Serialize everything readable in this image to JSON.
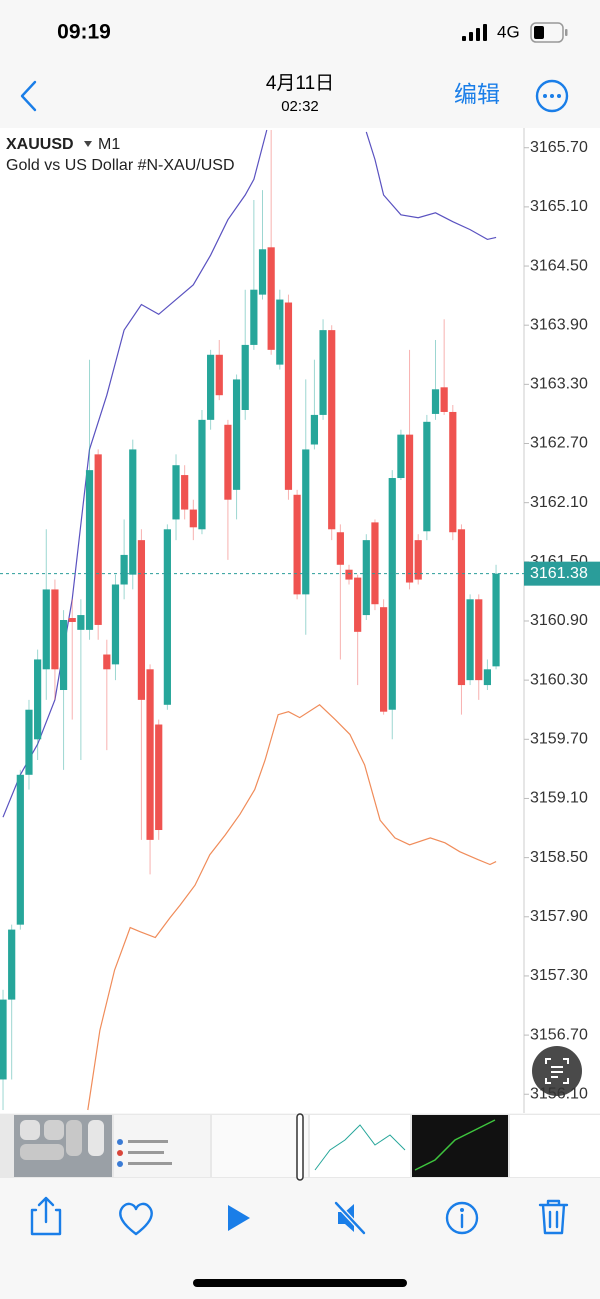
{
  "status_bar": {
    "time": "09:19",
    "network": "4G"
  },
  "nav": {
    "date": "4月11日",
    "time": "02:32",
    "edit": "编辑"
  },
  "chart_data": {
    "type": "candlestick",
    "title": "XAUUSD",
    "timeframe": "M1",
    "subtitle": "Gold vs US Dollar #N-XAU/USD",
    "up_color": "#26a69a",
    "down_color": "#ef5350",
    "xlim": [
      -0.35,
      60
    ],
    "ylim": [
      3155.92,
      3165.9
    ],
    "yticks": [
      {
        "value": 3165.7,
        "label": "3165.70"
      },
      {
        "value": 3165.1,
        "label": "3165.10"
      },
      {
        "value": 3164.5,
        "label": "3164.50"
      },
      {
        "value": 3163.9,
        "label": "3163.90"
      },
      {
        "value": 3163.3,
        "label": "3163.30"
      },
      {
        "value": 3162.7,
        "label": "3162.70"
      },
      {
        "value": 3162.1,
        "label": "3162.10"
      },
      {
        "value": 3161.5,
        "label": "3161.50"
      },
      {
        "value": 3160.9,
        "label": "3160.90"
      },
      {
        "value": 3160.3,
        "label": "3160.30"
      },
      {
        "value": 3159.7,
        "label": "3159.70"
      },
      {
        "value": 3159.1,
        "label": "3159.10"
      },
      {
        "value": 3158.5,
        "label": "3158.50"
      },
      {
        "value": 3157.9,
        "label": "3157.90"
      },
      {
        "value": 3157.3,
        "label": "3157.30"
      },
      {
        "value": 3156.7,
        "label": "3156.70"
      },
      {
        "value": 3156.1,
        "label": "3156.10"
      }
    ],
    "price_line": {
      "value": 3161.38,
      "label": "3161.38",
      "color": "#2a9d9a"
    },
    "open": [
      3156.25,
      3157.06,
      3157.82,
      3159.34,
      3159.7,
      3160.41,
      3161.22,
      3160.2,
      3160.93,
      3160.81,
      3160.81,
      3162.59,
      3160.56,
      3160.46,
      3161.27,
      3161.37,
      3161.72,
      3160.41,
      3159.85,
      3160.05,
      3161.93,
      3162.38,
      3162.03,
      3161.83,
      3162.94,
      3163.6,
      3162.89,
      3162.23,
      3163.04,
      3163.7,
      3164.21,
      3164.69,
      3163.5,
      3164.13,
      3162.18,
      3161.17,
      3162.69,
      3162.99,
      3163.85,
      3161.8,
      3161.42,
      3161.34,
      3160.96,
      3161.9,
      3161.04,
      3160.0,
      3162.35,
      3162.79,
      3161.72,
      3161.81,
      3163.0,
      3163.27,
      3163.02,
      3161.83,
      3160.3,
      3161.12,
      3160.25,
      3160.44
    ],
    "high": [
      3157.16,
      3157.82,
      3159.39,
      3160.1,
      3160.61,
      3161.83,
      3161.32,
      3161.01,
      3161.12,
      3161.12,
      3163.55,
      3162.64,
      3160.71,
      3161.37,
      3161.93,
      3162.74,
      3161.83,
      3160.46,
      3159.9,
      3161.88,
      3162.59,
      3162.48,
      3162.13,
      3163.04,
      3163.65,
      3163.75,
      3162.94,
      3163.4,
      3164.26,
      3165.17,
      3165.27,
      3165.88,
      3164.26,
      3164.21,
      3162.23,
      3163.35,
      3163.55,
      3163.96,
      3163.9,
      3161.88,
      3161.47,
      3161.37,
      3161.78,
      3161.93,
      3161.12,
      3162.43,
      3162.84,
      3163.65,
      3161.78,
      3162.99,
      3163.75,
      3163.96,
      3163.09,
      3161.88,
      3161.17,
      3161.17,
      3160.51,
      3161.47
    ],
    "low": [
      3155.94,
      3156.25,
      3157.77,
      3159.19,
      3159.49,
      3160.1,
      3160.1,
      3159.39,
      3159.9,
      3159.49,
      3160.71,
      3160.71,
      3159.59,
      3160.3,
      3161.12,
      3161.22,
      3158.68,
      3158.33,
      3158.68,
      3160.0,
      3161.72,
      3161.93,
      3161.72,
      3161.78,
      3162.84,
      3163.14,
      3161.52,
      3161.93,
      3162.94,
      3163.65,
      3164.16,
      3163.6,
      3163.45,
      3162.13,
      3161.12,
      3160.76,
      3162.64,
      3162.94,
      3161.72,
      3160.51,
      3161.27,
      3160.25,
      3160.91,
      3161.01,
      3159.95,
      3159.7,
      3162.33,
      3161.22,
      3161.27,
      3161.72,
      3162.94,
      3162.99,
      3161.72,
      3159.95,
      3160.25,
      3160.1,
      3160.2,
      3160.41
    ],
    "close": [
      3157.06,
      3157.77,
      3159.34,
      3160.0,
      3160.51,
      3161.22,
      3160.41,
      3160.91,
      3160.89,
      3160.96,
      3162.43,
      3160.86,
      3160.41,
      3161.27,
      3161.57,
      3162.64,
      3160.1,
      3158.68,
      3158.78,
      3161.83,
      3162.48,
      3162.03,
      3161.85,
      3162.94,
      3163.6,
      3163.19,
      3162.13,
      3163.35,
      3163.7,
      3164.26,
      3164.67,
      3163.65,
      3164.16,
      3162.23,
      3161.17,
      3162.64,
      3162.99,
      3163.85,
      3161.83,
      3161.47,
      3161.32,
      3160.79,
      3161.72,
      3161.07,
      3159.98,
      3162.35,
      3162.79,
      3161.29,
      3161.32,
      3162.92,
      3163.25,
      3163.02,
      3161.8,
      3160.25,
      3161.12,
      3160.3,
      3160.41,
      3161.38
    ],
    "bands": [
      {
        "color": "#5a52c0",
        "x": [
          0,
          2,
          4,
          6,
          8,
          10,
          12,
          14,
          16,
          18,
          20,
          22,
          24,
          26,
          28,
          29,
          30.5,
          36,
          42,
          43,
          44,
          46,
          48,
          50,
          52,
          54,
          56,
          57
        ],
        "values": [
          3158.91,
          3159.34,
          3159.65,
          3160.1,
          3161.12,
          3162.64,
          3163.19,
          3163.85,
          3164.11,
          3164.01,
          3164.16,
          3164.31,
          3164.61,
          3164.97,
          3165.22,
          3165.38,
          3165.88,
          null,
          3165.86,
          3165.58,
          3165.22,
          3165.02,
          3164.99,
          3165.04,
          3164.95,
          3164.87,
          3164.77,
          3164.79
        ]
      },
      {
        "color": "#f08c5a",
        "x": [
          9.8,
          11.2,
          12.9,
          14.7,
          15.8,
          17.6,
          19.3,
          20.5,
          22.2,
          23.9,
          25.7,
          27.4,
          29.1,
          30.3,
          31.8,
          33,
          34.3,
          36.6,
          38.4,
          40.1,
          41.8,
          43.6,
          45.3,
          47,
          49.4,
          51.1,
          52.8,
          54.9,
          56.3,
          57
        ],
        "values": [
          3155.94,
          3156.75,
          3157.36,
          3157.79,
          3157.75,
          3157.69,
          3157.89,
          3158.02,
          3158.22,
          3158.53,
          3158.73,
          3158.94,
          3159.19,
          3159.49,
          3159.95,
          3159.98,
          3159.92,
          3160.05,
          3159.9,
          3159.75,
          3159.44,
          3158.88,
          3158.7,
          3158.63,
          3158.7,
          3158.65,
          3158.56,
          3158.48,
          3158.43,
          3158.46
        ]
      }
    ]
  }
}
